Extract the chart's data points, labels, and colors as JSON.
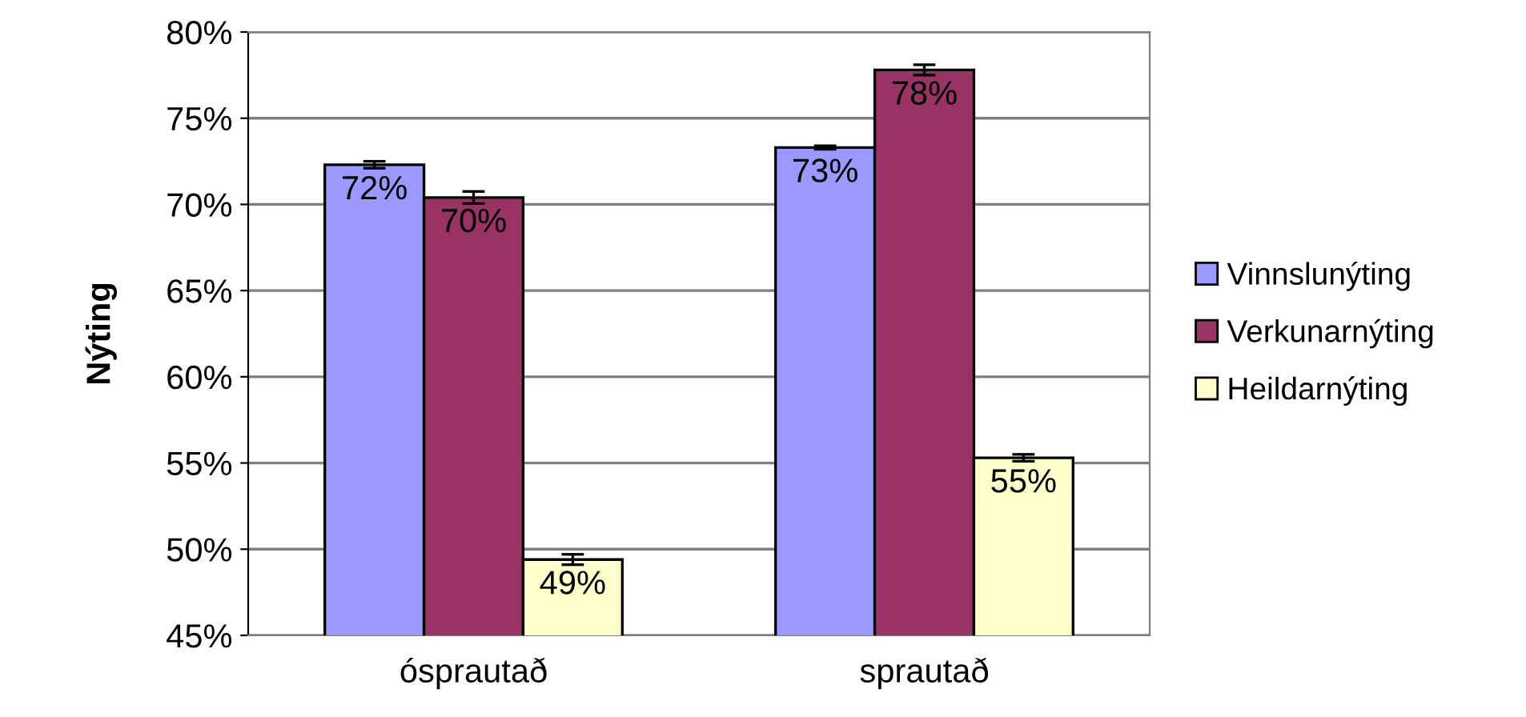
{
  "chart_data": {
    "type": "bar",
    "ylabel": "Nýting",
    "categories": [
      "ósprautað",
      "sprautað"
    ],
    "series": [
      {
        "name": "Vinnslunýting",
        "color": "#9999ff",
        "values": [
          72.3,
          73.3
        ],
        "errors": [
          0.2,
          0.1
        ],
        "value_labels": [
          "72%",
          "73%"
        ]
      },
      {
        "name": "Verkunarnýting",
        "color": "#993366",
        "values": [
          70.4,
          77.8
        ],
        "errors": [
          0.35,
          0.3
        ],
        "value_labels": [
          "70%",
          "78%"
        ]
      },
      {
        "name": "Heildarnýting",
        "color": "#ffffcc",
        "values": [
          49.4,
          55.3
        ],
        "errors": [
          0.3,
          0.2
        ],
        "value_labels": [
          "49%",
          "55%"
        ]
      }
    ],
    "ylim": [
      45,
      80
    ],
    "yticks": [
      {
        "value": 45,
        "label": "45%"
      },
      {
        "value": 50,
        "label": "50%"
      },
      {
        "value": 55,
        "label": "55%"
      },
      {
        "value": 60,
        "label": "60%"
      },
      {
        "value": 65,
        "label": "65%"
      },
      {
        "value": 70,
        "label": "70%"
      },
      {
        "value": 75,
        "label": "75%"
      },
      {
        "value": 80,
        "label": "80%"
      }
    ],
    "grid": "y",
    "legend": "right"
  }
}
